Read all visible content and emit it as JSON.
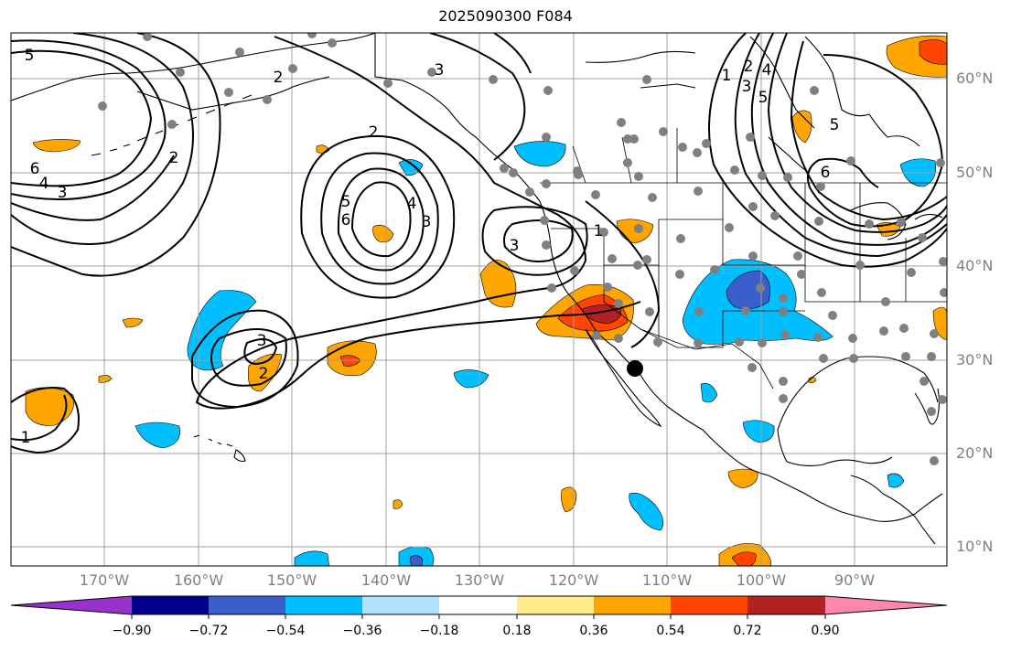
{
  "title": "2025090300 F084",
  "lat_labels": [
    "60°N",
    "50°N",
    "40°N",
    "30°N",
    "20°N",
    "10°N"
  ],
  "lon_labels": [
    "170°W",
    "160°W",
    "150°W",
    "140°W",
    "130°W",
    "120°W",
    "110°W",
    "100°W",
    "90°W"
  ],
  "contour_labels": [
    "5",
    "6",
    "4",
    "3",
    "2",
    "1",
    "2",
    "3",
    "2",
    "5",
    "6",
    "4",
    "3",
    "3",
    "1",
    "3",
    "2",
    "1",
    "2",
    "3",
    "4",
    "5",
    "5",
    "6"
  ],
  "colorbar": {
    "tick_labels": [
      "−0.90",
      "−0.72",
      "−0.54",
      "−0.36",
      "−0.18",
      "0.18",
      "0.36",
      "0.54",
      "0.72",
      "0.90"
    ],
    "colors": [
      "#9932cc",
      "#00008b",
      "#3a5fcd",
      "#00bfff",
      "#b0e2ff",
      "#ffffff",
      "#ffec8b",
      "#ffa500",
      "#ff4500",
      "#b22222",
      "#ff88aa"
    ]
  },
  "colors": {
    "grid": "#a0a0a0",
    "coast": "#000000",
    "contour": "#000000",
    "station": "#808080",
    "axis_label": "#808080"
  }
}
